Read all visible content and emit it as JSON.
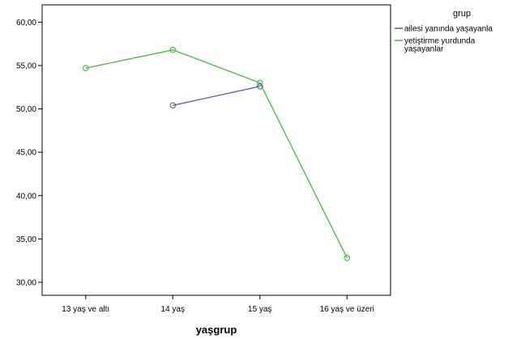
{
  "chart_data": {
    "type": "line",
    "title": "",
    "xlabel": "yaşgrup",
    "ylabel": "",
    "categories": [
      "13 yaş ve altı",
      "14 yaş",
      "15 yaş",
      "16 yaş ve üzeri"
    ],
    "ylim": [
      28.5,
      62
    ],
    "yticks": [
      "30,00",
      "35,00",
      "40,00",
      "45,00",
      "50,00",
      "55,00",
      "60,00"
    ],
    "ytick_values": [
      30,
      35,
      40,
      45,
      50,
      55,
      60
    ],
    "grid": false,
    "legend_position": "right",
    "legend_title": "grup",
    "series": [
      {
        "name": "ailesi yanında yaşayanla",
        "name_lines": [
          "ailesi yanında yaşayanla"
        ],
        "color": "#4a5bb5",
        "values": [
          null,
          50.4,
          52.6,
          null
        ]
      },
      {
        "name": "yetiştirme yurdunda yaşayanlar",
        "name_lines": [
          "yetiştirme yurdunda",
          "yaşayanlar"
        ],
        "color": "#3bbf3b",
        "values": [
          54.7,
          56.8,
          53.0,
          32.8
        ]
      }
    ]
  }
}
